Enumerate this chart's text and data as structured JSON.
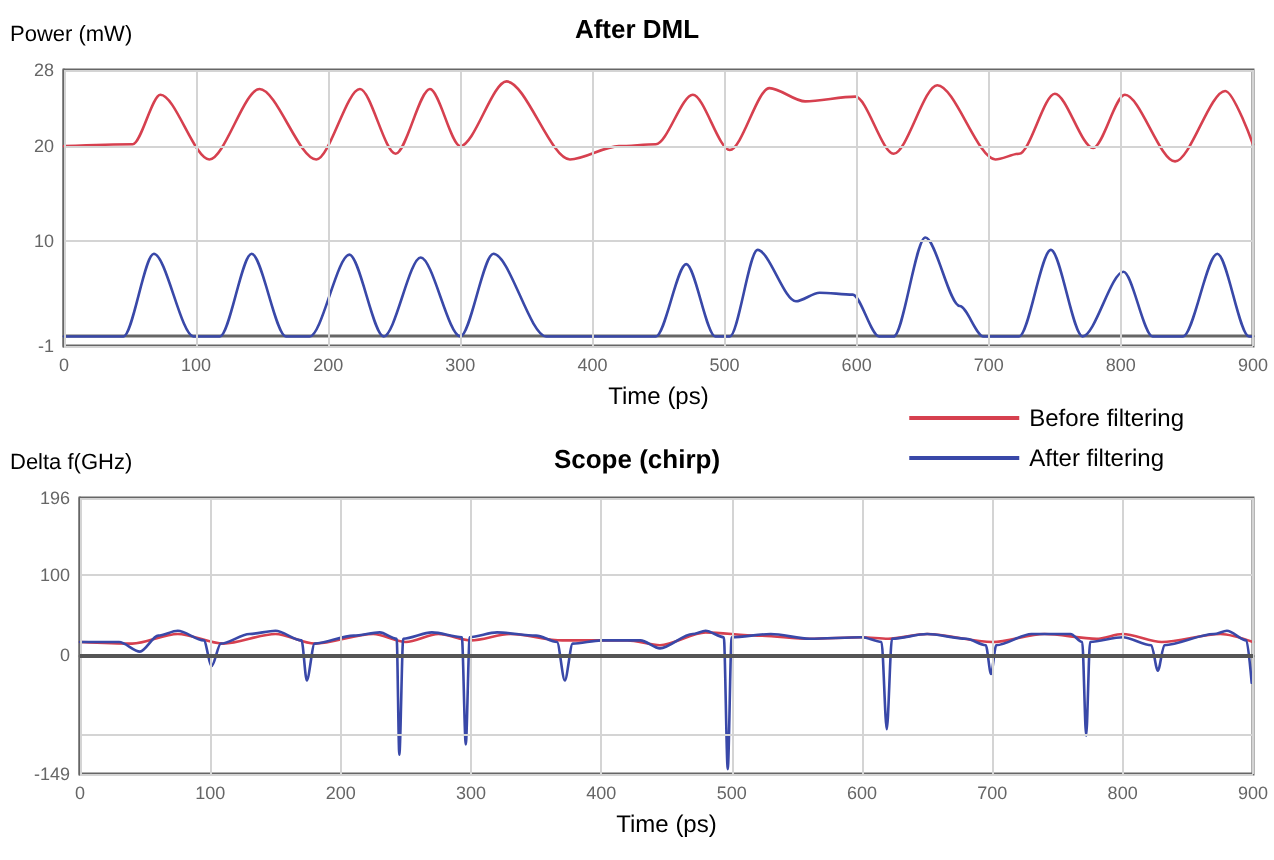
{
  "chart_data": [
    {
      "type": "line",
      "title": "After DML",
      "xlabel": "Time (ps)",
      "ylabel": "Power (mW)",
      "xlim": [
        0,
        900
      ],
      "xticks": [
        0,
        100,
        200,
        300,
        400,
        500,
        600,
        700,
        800,
        900
      ],
      "ylim": [
        -1,
        28
      ],
      "yticks": [
        -1,
        10,
        20,
        28
      ],
      "grid": true,
      "legend": "bottom right",
      "marker": "none",
      "line_style": "solid",
      "series": [
        {
          "name": "Before filtering",
          "color": "#d6404f",
          "x": [
            0,
            52,
            73,
            110,
            148,
            191,
            224,
            251,
            277,
            300,
            335,
            383,
            420,
            448,
            476,
            504,
            534,
            561,
            599,
            628,
            661,
            705,
            723,
            750,
            779,
            803,
            841,
            879,
            900
          ],
          "values": [
            20,
            20.2,
            25.4,
            18.6,
            26,
            18.6,
            26,
            19.2,
            26,
            20,
            26.8,
            18.6,
            20,
            20.2,
            25.4,
            19.6,
            26.1,
            24.7,
            25.2,
            19.2,
            26.4,
            18.6,
            19.2,
            25.5,
            19.8,
            25.4,
            18.4,
            25.8,
            20.2
          ]
        },
        {
          "name": "After filtering",
          "color": "#3948a8",
          "x": [
            0,
            45,
            68,
            98,
            118,
            142,
            168,
            186,
            216,
            242,
            270,
            300,
            325,
            365,
            448,
            471,
            493,
            504,
            525,
            554,
            572,
            597,
            617,
            628,
            652,
            678,
            696,
            723,
            747,
            771,
            802,
            824,
            847,
            873,
            897,
            900
          ],
          "values": [
            0,
            0,
            8.7,
            0,
            0,
            8.7,
            0,
            0,
            8.6,
            0,
            8.3,
            0,
            8.7,
            0,
            0,
            7.6,
            0,
            0,
            9.1,
            3.7,
            4.6,
            4.4,
            0,
            0,
            10.4,
            3.2,
            0,
            0,
            9.1,
            0,
            6.8,
            0,
            0,
            8.7,
            0,
            0
          ]
        }
      ]
    },
    {
      "type": "line",
      "title": "Scope (chirp)",
      "xlabel": "Time (ps)",
      "ylabel": "Delta f(GHz)",
      "xlim": [
        0,
        900
      ],
      "xticks": [
        0,
        100,
        200,
        300,
        400,
        500,
        600,
        700,
        800,
        900
      ],
      "ylim": [
        -149,
        196
      ],
      "yticks": [
        -149,
        {
          "value": -100,
          "label": null
        },
        0,
        100,
        196
      ],
      "grid": true,
      "marker": "none",
      "line_style": "solid",
      "ref_lines": [
        {
          "axis": "y",
          "value": 0,
          "color": "#555555"
        }
      ],
      "series": [
        {
          "color": "#d6404f",
          "x": [
            0,
            40,
            75,
            110,
            150,
            180,
            225,
            250,
            275,
            300,
            330,
            370,
            420,
            445,
            480,
            520,
            560,
            600,
            620,
            650,
            700,
            740,
            780,
            800,
            830,
            875,
            900
          ],
          "values": [
            16,
            14,
            26,
            14,
            26,
            14,
            26,
            16,
            26,
            18,
            26,
            18,
            18,
            12,
            28,
            24,
            20,
            22,
            20,
            26,
            16,
            26,
            20,
            26,
            16,
            26,
            16
          ]
        },
        {
          "color": "#3948a8",
          "x": [
            0,
            30,
            46,
            60,
            75,
            95,
            101,
            108,
            130,
            150,
            170,
            174,
            180,
            210,
            230,
            243,
            245,
            248,
            270,
            293,
            296,
            299,
            320,
            350,
            366,
            372,
            378,
            400,
            430,
            445,
            470,
            480,
            494,
            497,
            500,
            530,
            560,
            600,
            615,
            619,
            623,
            650,
            680,
            695,
            699,
            703,
            730,
            760,
            769,
            772,
            775,
            800,
            822,
            827,
            832,
            870,
            880,
            895,
            899
          ],
          "values": [
            16,
            16,
            4,
            24,
            30,
            18,
            -14,
            14,
            26,
            30,
            18,
            -32,
            14,
            24,
            28,
            20,
            -125,
            20,
            28,
            22,
            -112,
            22,
            28,
            24,
            16,
            -32,
            14,
            18,
            18,
            8,
            26,
            30,
            22,
            -143,
            22,
            26,
            20,
            22,
            16,
            -93,
            20,
            26,
            20,
            12,
            -24,
            12,
            26,
            26,
            16,
            -101,
            16,
            22,
            12,
            -20,
            12,
            26,
            30,
            18,
            -35
          ]
        }
      ]
    }
  ]
}
